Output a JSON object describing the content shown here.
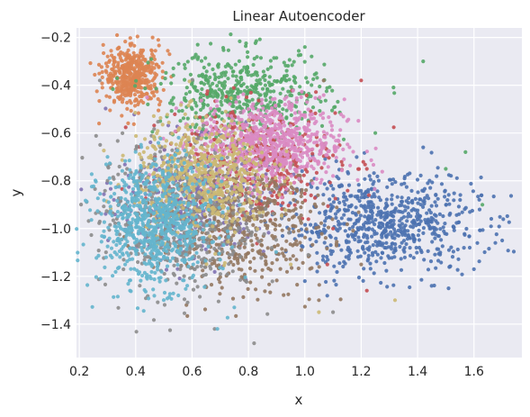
{
  "chart_data": {
    "type": "scatter",
    "title": "Linear Autoencoder",
    "xlabel": "x",
    "ylabel": "y",
    "xlim": [
      0.19,
      1.77
    ],
    "ylim": [
      -1.54,
      -0.16
    ],
    "xticks": [
      0.2,
      0.4,
      0.6,
      0.8,
      1.0,
      1.2,
      1.4,
      1.6
    ],
    "yticks": [
      -0.2,
      -0.4,
      -0.6,
      -0.8,
      -1.0,
      -1.2,
      -1.4
    ],
    "xtick_labels": [
      "0.2",
      "0.4",
      "0.6",
      "0.8",
      "1.0",
      "1.2",
      "1.4",
      "1.6"
    ],
    "ytick_labels": [
      "−0.2",
      "−0.4",
      "−0.6",
      "−0.8",
      "−1.0",
      "−1.2",
      "−1.4"
    ],
    "grid": true,
    "background_color": "#eaeaf2",
    "series": [
      {
        "color": "#4c72b0",
        "center": [
          1.28,
          -0.98
        ],
        "spread": [
          0.17,
          0.1
        ],
        "count": 700,
        "points": [
          [
            1.42,
            -0.66
          ],
          [
            1.62,
            -0.92
          ],
          [
            1.7,
            -1.05
          ],
          [
            1.6,
            -1.17
          ],
          [
            1.51,
            -1.25
          ],
          [
            1.45,
            -1.24
          ],
          [
            1.0,
            -1.22
          ],
          [
            1.12,
            -1.07
          ]
        ]
      },
      {
        "color": "#dd8452",
        "center": [
          0.39,
          -0.36
        ],
        "spread": [
          0.05,
          0.06
        ],
        "count": 450,
        "points": [
          [
            0.46,
            -0.2
          ],
          [
            0.48,
            -0.21
          ],
          [
            0.27,
            -0.56
          ],
          [
            0.52,
            -0.27
          ]
        ]
      },
      {
        "color": "#55a868",
        "center": [
          0.78,
          -0.44
        ],
        "spread": [
          0.15,
          0.09
        ],
        "count": 500,
        "points": [
          [
            1.42,
            -0.3
          ],
          [
            1.0,
            -0.24
          ],
          [
            1.57,
            -0.68
          ],
          [
            1.5,
            -0.75
          ],
          [
            1.63,
            -0.9
          ],
          [
            1.25,
            -0.6
          ],
          [
            0.62,
            -0.23
          ]
        ]
      },
      {
        "color": "#c44e52",
        "center": [
          0.82,
          -0.72
        ],
        "spread": [
          0.15,
          0.12
        ],
        "count": 400,
        "points": [
          [
            1.2,
            -0.38
          ],
          [
            1.22,
            -0.75
          ],
          [
            1.1,
            -1.0
          ],
          [
            1.08,
            -1.15
          ],
          [
            1.22,
            -1.26
          ]
        ]
      },
      {
        "color": "#8172b3",
        "center": [
          0.6,
          -0.88
        ],
        "spread": [
          0.13,
          0.12
        ],
        "count": 350,
        "points": []
      },
      {
        "color": "#937860",
        "center": [
          0.78,
          -0.98
        ],
        "spread": [
          0.15,
          0.14
        ],
        "count": 500,
        "points": [
          [
            1.05,
            -1.3
          ],
          [
            1.2,
            -1.15
          ],
          [
            0.58,
            -1.32
          ]
        ]
      },
      {
        "color": "#da8bc3",
        "center": [
          0.88,
          -0.64
        ],
        "spread": [
          0.13,
          0.09
        ],
        "count": 700,
        "points": [
          [
            1.15,
            -0.55
          ],
          [
            1.1,
            -0.78
          ]
        ]
      },
      {
        "color": "#8c8c8c",
        "center": [
          0.55,
          -0.95
        ],
        "spread": [
          0.14,
          0.16
        ],
        "count": 550,
        "points": [
          [
            0.82,
            -1.48
          ],
          [
            0.68,
            -1.42
          ],
          [
            1.1,
            -1.35
          ],
          [
            0.3,
            -0.8
          ]
        ]
      },
      {
        "color": "#ccb974",
        "center": [
          0.64,
          -0.78
        ],
        "spread": [
          0.12,
          0.12
        ],
        "count": 600,
        "points": [
          [
            1.05,
            -1.35
          ],
          [
            1.32,
            -1.3
          ],
          [
            0.95,
            -1.15
          ]
        ]
      },
      {
        "color": "#64b5cd",
        "center": [
          0.47,
          -0.98
        ],
        "spread": [
          0.1,
          0.13
        ],
        "count": 750,
        "points": [
          [
            0.3,
            -0.7
          ],
          [
            0.69,
            -1.42
          ],
          [
            0.75,
            -1.33
          ],
          [
            0.38,
            -1.26
          ]
        ]
      }
    ]
  }
}
